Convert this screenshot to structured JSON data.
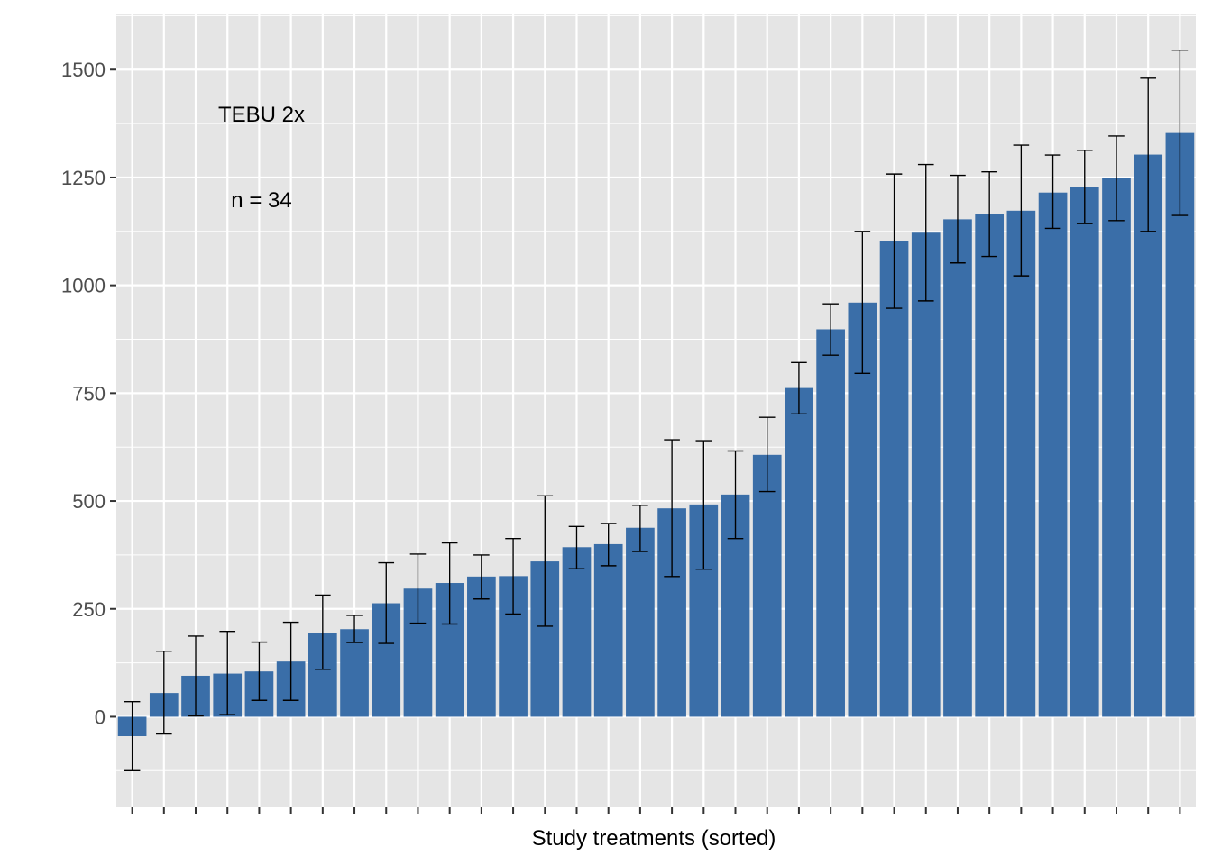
{
  "chart_data": {
    "type": "bar",
    "xlabel": "Study treatments (sorted)",
    "ylabel": "",
    "ylim": [
      -210,
      1630
    ],
    "yticks": [
      0,
      250,
      500,
      750,
      1000,
      1250,
      1500
    ],
    "grid": true,
    "annotations": [
      "TEBU 2x",
      "n = 34"
    ],
    "colors": {
      "bar": "#3A6EA8",
      "panel": "#E5E5E5",
      "grid": "#FFFFFF",
      "errorbar": "#000000"
    },
    "values": [
      -45,
      55,
      95,
      100,
      105,
      128,
      195,
      203,
      263,
      297,
      310,
      325,
      326,
      360,
      393,
      400,
      438,
      483,
      492,
      515,
      607,
      762,
      898,
      960,
      1103,
      1122,
      1153,
      1165,
      1173,
      1215,
      1228,
      1248,
      1303,
      1353
    ],
    "errors": [
      [
        -125,
        35
      ],
      [
        -40,
        152
      ],
      [
        2,
        187
      ],
      [
        5,
        198
      ],
      [
        38,
        173
      ],
      [
        38,
        219
      ],
      [
        110,
        282
      ],
      [
        172,
        235
      ],
      [
        170,
        357
      ],
      [
        217,
        377
      ],
      [
        215,
        403
      ],
      [
        273,
        375
      ],
      [
        238,
        413
      ],
      [
        210,
        512
      ],
      [
        343,
        441
      ],
      [
        350,
        448
      ],
      [
        383,
        490
      ],
      [
        325,
        642
      ],
      [
        342,
        640
      ],
      [
        413,
        616
      ],
      [
        522,
        694
      ],
      [
        702,
        821
      ],
      [
        838,
        957
      ],
      [
        796,
        1125
      ],
      [
        947,
        1258
      ],
      [
        964,
        1280
      ],
      [
        1052,
        1255
      ],
      [
        1067,
        1263
      ],
      [
        1022,
        1325
      ],
      [
        1132,
        1302
      ],
      [
        1143,
        1313
      ],
      [
        1150,
        1346
      ],
      [
        1125,
        1480
      ],
      [
        1162,
        1545
      ]
    ]
  }
}
